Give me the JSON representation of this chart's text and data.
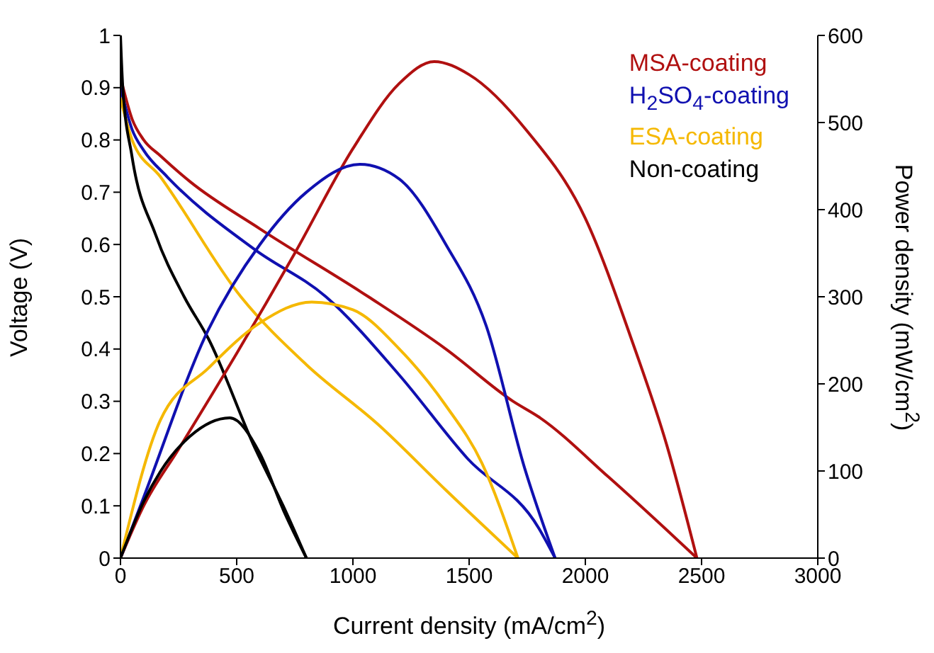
{
  "chart_data": {
    "type": "line",
    "xlabel": "Current density (mA/cm$^{2}$)",
    "ylabel": "Voltage (V)",
    "y2label": "Power density (mW/cm$^{2}$)",
    "xlim": [
      0,
      3000
    ],
    "xticks": [
      0,
      500,
      1000,
      1500,
      2000,
      2500,
      3000
    ],
    "ylim": [
      0,
      1
    ],
    "yticks": [
      0,
      0.1,
      0.2,
      0.3,
      0.4,
      0.5,
      0.6,
      0.7,
      0.8,
      0.9,
      1
    ],
    "y2lim": [
      0,
      600
    ],
    "y2ticks": [
      0,
      100,
      200,
      300,
      400,
      500,
      600
    ],
    "grid": false,
    "legend": "top right",
    "marker": "none",
    "line_style": "solid",
    "series": [
      {
        "name": "MSA-coating",
        "color": "#b01010",
        "x": [
          0,
          50,
          100,
          171,
          300,
          600,
          1067,
          1400,
          1689,
          1800,
          2100,
          2480
        ],
        "values": [
          0.92,
          0.84,
          0.8,
          0.77,
          0.72,
          0.63,
          0.5,
          0.4,
          0.3,
          0.27,
          0.155,
          0
        ]
      },
      {
        "name": "H$_{2}$SO$_{4}$-coating",
        "color": "#1010b0",
        "x": [
          0,
          50,
          100,
          200,
          579,
          884,
          1200,
          1494,
          1800,
          1870
        ],
        "values": [
          0.9,
          0.82,
          0.78,
          0.73,
          0.59,
          0.5,
          0.35,
          0.19,
          0.057,
          0
        ]
      },
      {
        "name": "ESA-coating",
        "color": "#f5b800",
        "x": [
          0,
          50,
          171,
          518,
          800,
          1110,
          1400,
          1710
        ],
        "values": [
          0.88,
          0.8,
          0.73,
          0.5,
          0.37,
          0.255,
          0.13,
          0
        ]
      },
      {
        "name": "Non-coating",
        "color": "#000000",
        "x": [
          0,
          10,
          49,
          150,
          274,
          378,
          579,
          700,
          800
        ],
        "values": [
          1,
          0.9,
          0.77,
          0.62,
          0.5,
          0.42,
          0.21,
          0.1,
          0
        ]
      },
      {
        "axis": "y2",
        "color": "#b01010",
        "x": [
          0,
          100,
          250,
          500,
          750,
          1000,
          1200,
          1350,
          1500,
          1750,
          2000,
          2200,
          2350,
          2480
        ],
        "values": [
          0,
          60,
          125,
          235,
          350,
          470,
          545,
          570,
          555,
          490,
          390,
          250,
          130,
          0
        ]
      },
      {
        "axis": "y2",
        "color": "#1010b0",
        "x": [
          0,
          100,
          378,
          600,
          800,
          1030,
          1200,
          1400,
          1573,
          1738,
          1870
        ],
        "values": [
          0,
          70,
          262,
          360,
          420,
          452,
          435,
          360,
          267,
          104,
          0
        ]
      },
      {
        "axis": "y2",
        "color": "#f5b800",
        "x": [
          0,
          171,
          378,
          600,
          823,
          1000,
          1200,
          1400,
          1555,
          1710
        ],
        "values": [
          0,
          158,
          218,
          270,
          294,
          285,
          240,
          175,
          109,
          0
        ]
      },
      {
        "axis": "y2",
        "color": "#000000",
        "x": [
          0,
          100,
          171,
          300,
          470,
          600,
          701,
          800
        ],
        "values": [
          0,
          65,
          99,
          140,
          161,
          120,
          55,
          0
        ]
      }
    ]
  }
}
